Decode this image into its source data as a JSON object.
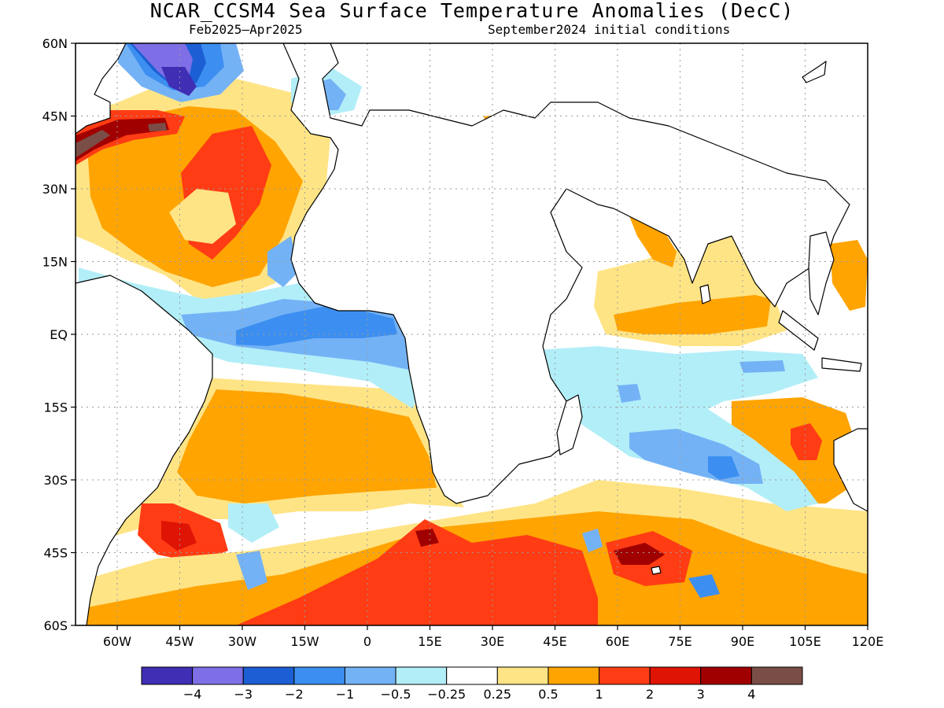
{
  "title": "NCAR_CCSM4 Sea Surface Temperature Anomalies (DecC)",
  "subtitle_left": "Feb2025–Apr2025",
  "subtitle_right": "September2024 initial conditions",
  "map": {
    "lon_range": [
      -70,
      120
    ],
    "lat_range": [
      -60,
      60
    ],
    "lat_ticks": [
      {
        "value": 60,
        "label": "60N"
      },
      {
        "value": 45,
        "label": "45N"
      },
      {
        "value": 30,
        "label": "30N"
      },
      {
        "value": 15,
        "label": "15N"
      },
      {
        "value": 0,
        "label": "EQ"
      },
      {
        "value": -15,
        "label": "15S"
      },
      {
        "value": -30,
        "label": "30S"
      },
      {
        "value": -45,
        "label": "45S"
      },
      {
        "value": -60,
        "label": "60S"
      }
    ],
    "lon_ticks": [
      {
        "value": -60,
        "label": "60W"
      },
      {
        "value": -45,
        "label": "45W"
      },
      {
        "value": -30,
        "label": "30W"
      },
      {
        "value": -15,
        "label": "15W"
      },
      {
        "value": 0,
        "label": "0"
      },
      {
        "value": 15,
        "label": "15E"
      },
      {
        "value": 30,
        "label": "30E"
      },
      {
        "value": 45,
        "label": "45E"
      },
      {
        "value": 60,
        "label": "60E"
      },
      {
        "value": 75,
        "label": "75E"
      },
      {
        "value": 90,
        "label": "90E"
      },
      {
        "value": 105,
        "label": "105E"
      },
      {
        "value": 120,
        "label": "120E"
      }
    ],
    "gridlines": true
  },
  "colorbar": {
    "colors": [
      "#3f2fb4",
      "#7f6fe6",
      "#1c5fd4",
      "#3c8ff0",
      "#74b2f6",
      "#b2eef8",
      "#ffffff",
      "#ffe486",
      "#ffa400",
      "#ff3c14",
      "#df1405",
      "#a10000",
      "#7a4e46"
    ],
    "labels": [
      "−4",
      "−3",
      "−2",
      "−1",
      "−0.5",
      "−0.25",
      "0.25",
      "0.5",
      "1",
      "2",
      "3",
      "4"
    ]
  },
  "colors": {
    "land": "#ffffff",
    "coastline": "#000000",
    "grid": "#9a9a9a"
  }
}
